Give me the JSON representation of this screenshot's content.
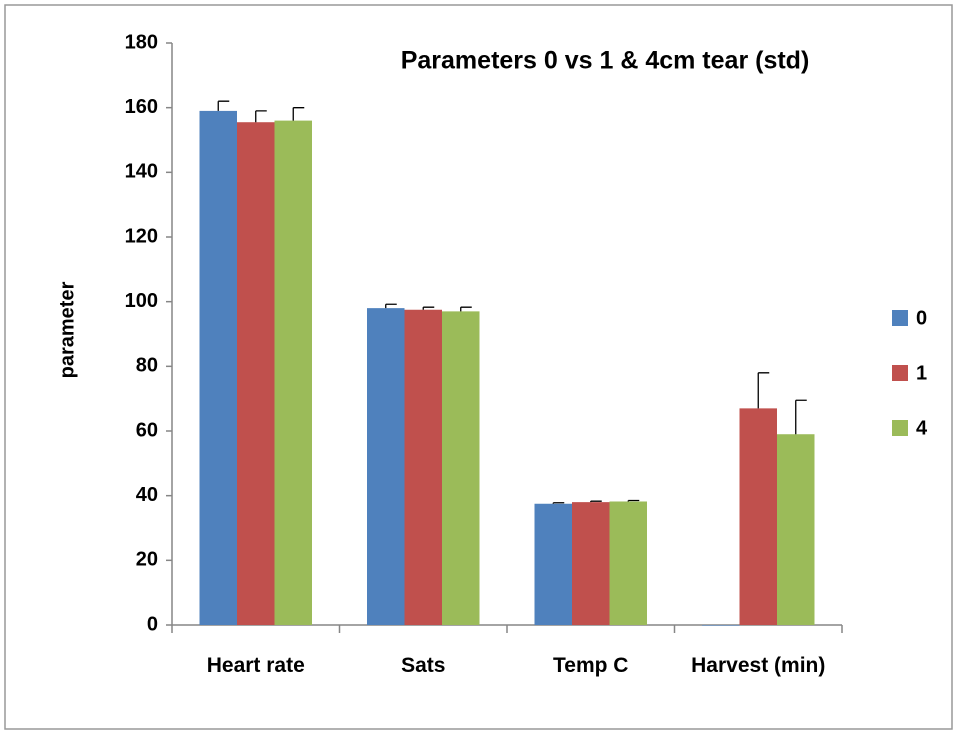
{
  "chart_data": {
    "type": "bar",
    "title": "Parameters 0 vs 1 & 4cm tear (std)",
    "ylabel": "parameter",
    "categories": [
      "Heart rate",
      "Sats",
      "Temp C",
      "Harvest (min)"
    ],
    "series": [
      {
        "name": "0",
        "color": "#4f81bd",
        "values": [
          159,
          98,
          37.5,
          0
        ],
        "errors": [
          3,
          1.2,
          0.3,
          0
        ]
      },
      {
        "name": "1",
        "color": "#c0504d",
        "values": [
          155.5,
          97.5,
          38,
          67
        ],
        "errors": [
          3.5,
          0.8,
          0.3,
          11
        ]
      },
      {
        "name": "4",
        "color": "#9bbb59",
        "values": [
          156,
          97,
          38.2,
          59
        ],
        "errors": [
          4,
          1.3,
          0.3,
          10.5
        ]
      }
    ],
    "ylim": [
      0,
      180
    ],
    "yticks": [
      0,
      20,
      40,
      60,
      80,
      100,
      120,
      140,
      160,
      180
    ],
    "grid": false,
    "legend": "right"
  }
}
